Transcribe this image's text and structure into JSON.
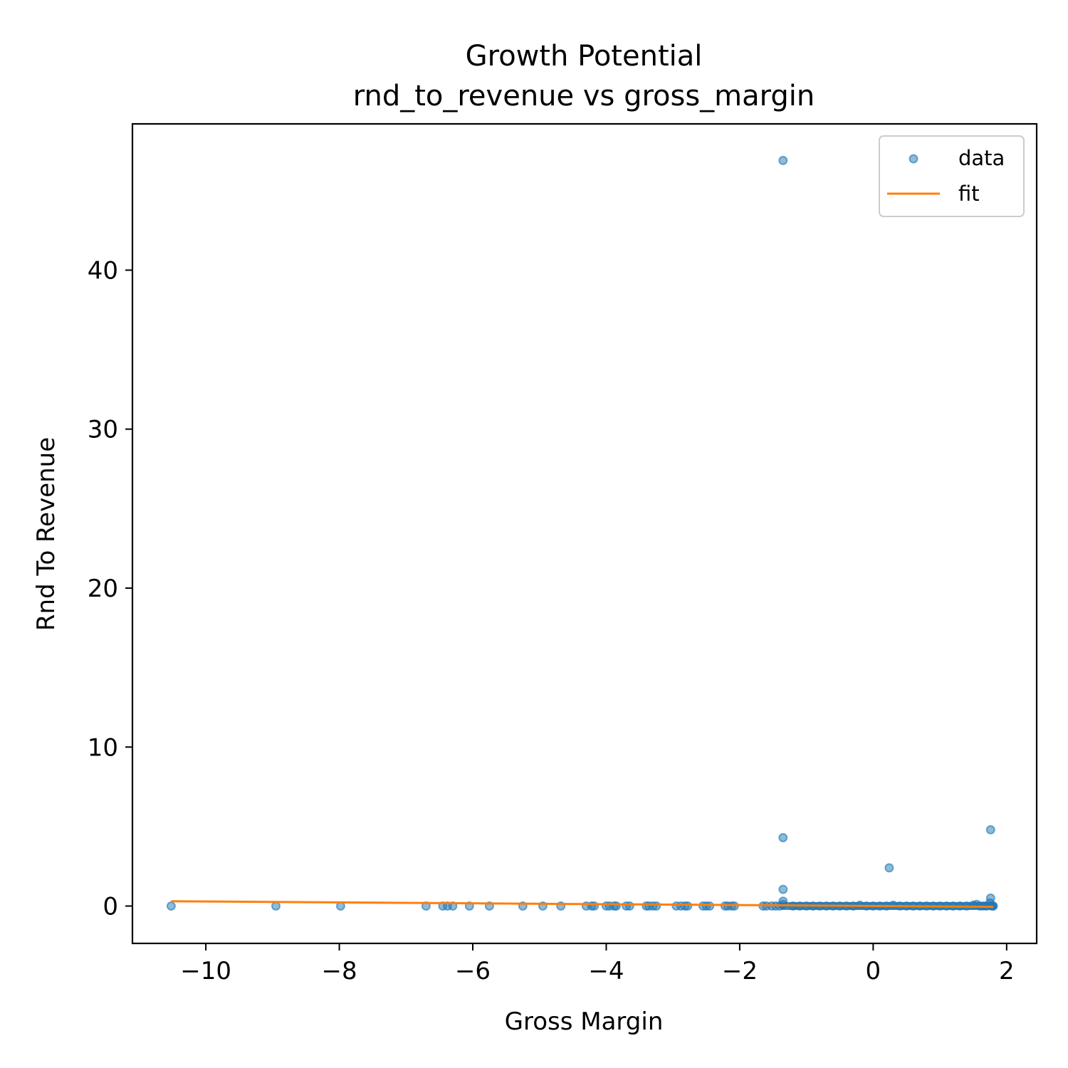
{
  "chart_data": {
    "type": "scatter",
    "title": "Growth Potential",
    "subtitle": "rnd_to_revenue vs gross_margin",
    "xlabel": "Gross Margin",
    "ylabel": "Rnd To Revenue",
    "xlim": [
      -11.1,
      2.45
    ],
    "ylim": [
      -2.35,
      49.2
    ],
    "xticks": [
      -10,
      -8,
      -6,
      -4,
      -2,
      0,
      2
    ],
    "xtick_labels": [
      "−10",
      "−8",
      "−6",
      "−4",
      "−2",
      "0",
      "2"
    ],
    "yticks": [
      0,
      10,
      20,
      30,
      40
    ],
    "ytick_labels": [
      "0",
      "10",
      "20",
      "30",
      "40"
    ],
    "grid": false,
    "legend": {
      "placement": "top-right",
      "entries": [
        "data",
        "fit"
      ]
    },
    "series": [
      {
        "name": "data",
        "kind": "scatter",
        "color": "#1f77b4",
        "points": [
          [
            -10.52,
            0.0
          ],
          [
            -8.95,
            0.0
          ],
          [
            -7.98,
            0.0
          ],
          [
            -6.7,
            0.0
          ],
          [
            -6.45,
            0.0
          ],
          [
            -6.38,
            0.0
          ],
          [
            -6.3,
            0.0
          ],
          [
            -6.05,
            0.0
          ],
          [
            -5.75,
            0.0
          ],
          [
            -5.25,
            0.0
          ],
          [
            -4.95,
            0.0
          ],
          [
            -4.68,
            0.0
          ],
          [
            -4.3,
            0.0
          ],
          [
            -4.22,
            0.0
          ],
          [
            -4.18,
            0.0
          ],
          [
            -4.0,
            0.0
          ],
          [
            -3.95,
            0.0
          ],
          [
            -3.88,
            0.0
          ],
          [
            -3.85,
            0.0
          ],
          [
            -3.7,
            0.0
          ],
          [
            -3.65,
            0.0
          ],
          [
            -3.4,
            0.0
          ],
          [
            -3.36,
            0.0
          ],
          [
            -3.3,
            0.0
          ],
          [
            -3.25,
            0.0
          ],
          [
            -2.95,
            0.0
          ],
          [
            -2.88,
            0.0
          ],
          [
            -2.82,
            0.0
          ],
          [
            -2.78,
            0.0
          ],
          [
            -2.55,
            0.0
          ],
          [
            -2.5,
            0.0
          ],
          [
            -2.45,
            0.0
          ],
          [
            -2.22,
            0.0
          ],
          [
            -2.18,
            0.0
          ],
          [
            -2.12,
            0.0
          ],
          [
            -2.08,
            0.0
          ],
          [
            -1.65,
            0.0
          ],
          [
            -1.6,
            0.0
          ],
          [
            -1.52,
            0.0
          ],
          [
            -1.46,
            0.0
          ],
          [
            -1.4,
            0.0
          ],
          [
            -1.35,
            0.1
          ],
          [
            -1.35,
            0.3
          ],
          [
            -1.35,
            1.05
          ],
          [
            -1.35,
            4.3
          ],
          [
            -1.35,
            46.9
          ],
          [
            -1.2,
            0.0
          ],
          [
            -1.1,
            0.0
          ],
          [
            -1.0,
            0.0
          ],
          [
            -0.9,
            0.0
          ],
          [
            -0.8,
            0.0
          ],
          [
            -0.7,
            0.0
          ],
          [
            -0.6,
            0.0
          ],
          [
            -0.5,
            0.0
          ],
          [
            -0.4,
            0.0
          ],
          [
            -0.3,
            0.0
          ],
          [
            -0.2,
            0.05
          ],
          [
            -0.1,
            0.0
          ],
          [
            0.0,
            0.0
          ],
          [
            0.1,
            0.0
          ],
          [
            0.2,
            0.0
          ],
          [
            0.24,
            2.4
          ],
          [
            0.3,
            0.05
          ],
          [
            0.4,
            0.0
          ],
          [
            0.5,
            0.0
          ],
          [
            0.6,
            0.0
          ],
          [
            0.7,
            0.0
          ],
          [
            0.8,
            0.0
          ],
          [
            0.9,
            0.0
          ],
          [
            1.0,
            0.0
          ],
          [
            1.1,
            0.0
          ],
          [
            1.2,
            0.0
          ],
          [
            1.3,
            0.0
          ],
          [
            1.4,
            0.0
          ],
          [
            1.5,
            0.05
          ],
          [
            1.55,
            0.1
          ],
          [
            1.6,
            0.0
          ],
          [
            1.65,
            0.0
          ],
          [
            1.7,
            0.0
          ],
          [
            1.75,
            0.2
          ],
          [
            1.76,
            0.5
          ],
          [
            1.76,
            4.8
          ],
          [
            1.78,
            0.0
          ],
          [
            1.8,
            0.0
          ]
        ]
      },
      {
        "name": "fit",
        "kind": "line",
        "color": "#ff7f0e",
        "points": [
          [
            -10.52,
            0.3
          ],
          [
            1.8,
            -0.05
          ]
        ]
      }
    ]
  }
}
